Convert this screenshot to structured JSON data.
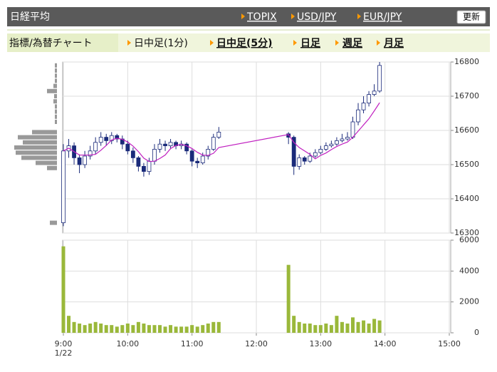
{
  "header": {
    "title": "日経平均",
    "links": [
      "TOPIX",
      "USD/JPY",
      "EUR/JPY"
    ],
    "button": "更新"
  },
  "tabs": {
    "label": "指標/為替チャート",
    "items": [
      "日中足(1分)",
      "日中足(5分)",
      "日足",
      "週足",
      "月足"
    ]
  },
  "chart_data": [
    {
      "type": "candlestick",
      "up_color": "#ffffff",
      "down_color": "#1a2a7a",
      "edge_color": "#1a2a7a",
      "ma_color": "#c020c0",
      "x": [
        0,
        5,
        10,
        15,
        20,
        25,
        30,
        35,
        40,
        45,
        50,
        55,
        60,
        65,
        70,
        75,
        80,
        85,
        90,
        95,
        100,
        105,
        110,
        115,
        120,
        125,
        130,
        135,
        140,
        145,
        210,
        215,
        220,
        225,
        230,
        235,
        240,
        245,
        250,
        255,
        260,
        265,
        270,
        275,
        280,
        285,
        290,
        295
      ],
      "open": [
        16330,
        16540,
        16555,
        16520,
        16500,
        16525,
        16540,
        16565,
        16580,
        16570,
        16585,
        16575,
        16560,
        16540,
        16520,
        16495,
        16480,
        16510,
        16545,
        16560,
        16555,
        16565,
        16555,
        16560,
        16540,
        16510,
        16505,
        16525,
        16545,
        16580,
        16590,
        16580,
        16495,
        16520,
        16510,
        16525,
        16535,
        16545,
        16555,
        16560,
        16570,
        16575,
        16580,
        16625,
        16660,
        16680,
        16705,
        16715
      ],
      "high": [
        16560,
        16575,
        16565,
        16530,
        16540,
        16555,
        16580,
        16595,
        16590,
        16595,
        16590,
        16585,
        16570,
        16550,
        16525,
        16505,
        16520,
        16560,
        16575,
        16570,
        16575,
        16570,
        16570,
        16565,
        16545,
        16520,
        16535,
        16555,
        16590,
        16610,
        16595,
        16585,
        16530,
        16525,
        16535,
        16545,
        16555,
        16565,
        16570,
        16580,
        16590,
        16595,
        16640,
        16680,
        16700,
        16715,
        16735,
        16800
      ],
      "low": [
        16320,
        16520,
        16500,
        16475,
        16490,
        16515,
        16530,
        16555,
        16555,
        16560,
        16565,
        16545,
        16530,
        16505,
        16480,
        16465,
        16470,
        16500,
        16535,
        16540,
        16545,
        16545,
        16545,
        16530,
        16495,
        16490,
        16500,
        16515,
        16540,
        16575,
        16560,
        16470,
        16485,
        16500,
        16505,
        16520,
        16530,
        16540,
        16550,
        16555,
        16565,
        16570,
        16575,
        16615,
        16650,
        16670,
        16700,
        16710
      ],
      "close": [
        16540,
        16555,
        16520,
        16500,
        16525,
        16540,
        16565,
        16580,
        16570,
        16585,
        16575,
        16560,
        16540,
        16520,
        16495,
        16480,
        16510,
        16545,
        16560,
        16555,
        16565,
        16555,
        16560,
        16540,
        16510,
        16505,
        16525,
        16545,
        16580,
        16595,
        16580,
        16495,
        16520,
        16510,
        16525,
        16535,
        16545,
        16555,
        16560,
        16570,
        16575,
        16580,
        16625,
        16660,
        16680,
        16705,
        16715,
        16790
      ],
      "ma": [
        16540,
        16548,
        16538,
        16528,
        16528,
        16528,
        16530,
        16542,
        16556,
        16572,
        16577,
        16574,
        16566,
        16554,
        16538,
        16519,
        16509,
        16510,
        16518,
        16528,
        16547,
        16556,
        16559,
        16555,
        16547,
        16536,
        16528,
        16527,
        16533,
        16550,
        16588,
        16565,
        16550,
        16540,
        16530,
        16517,
        16527,
        16534,
        16544,
        16553,
        16560,
        16566,
        16580,
        16598,
        16616,
        16634,
        16657,
        16681
      ],
      "xlim": [
        0,
        360
      ],
      "ylim": [
        16300,
        16800
      ],
      "yticks": [
        16300,
        16400,
        16500,
        16600,
        16700,
        16800
      ],
      "grid": true,
      "volume_profile": {
        "color": "#999999",
        "prices": [
          16790,
          16775,
          16760,
          16745,
          16730,
          16715,
          16700,
          16685,
          16670,
          16655,
          16640,
          16625,
          16595,
          16580,
          16565,
          16550,
          16535,
          16520,
          16505,
          16490,
          16330
        ],
        "values": [
          3,
          3,
          3,
          3,
          5,
          14,
          4,
          5,
          3,
          3,
          3,
          3,
          35,
          55,
          48,
          60,
          58,
          50,
          30,
          14,
          10
        ]
      }
    },
    {
      "type": "bar",
      "color": "#9ab83a",
      "x": [
        0,
        5,
        10,
        15,
        20,
        25,
        30,
        35,
        40,
        45,
        50,
        55,
        60,
        65,
        70,
        75,
        80,
        85,
        90,
        95,
        100,
        105,
        110,
        115,
        120,
        125,
        130,
        135,
        140,
        145,
        210,
        215,
        220,
        225,
        230,
        235,
        240,
        245,
        250,
        255,
        260,
        265,
        270,
        275,
        280,
        285,
        290,
        295
      ],
      "values": [
        5600,
        1100,
        700,
        600,
        500,
        600,
        700,
        600,
        500,
        500,
        400,
        500,
        600,
        500,
        700,
        600,
        500,
        500,
        500,
        400,
        500,
        400,
        400,
        400,
        500,
        400,
        500,
        600,
        700,
        700,
        4400,
        1100,
        700,
        600,
        600,
        500,
        500,
        600,
        500,
        1100,
        700,
        600,
        1000,
        700,
        800,
        600,
        900,
        800
      ],
      "xlim": [
        0,
        360
      ],
      "ylim": [
        0,
        6000
      ],
      "yticks": [
        0,
        2000,
        4000,
        6000
      ],
      "grid": true,
      "xticks": [
        {
          "value": 0,
          "label": "9:00"
        },
        {
          "value": 60,
          "label": "10:00"
        },
        {
          "value": 120,
          "label": "11:00"
        },
        {
          "value": 180,
          "label": "12:00"
        },
        {
          "value": 240,
          "label": "13:00"
        },
        {
          "value": 300,
          "label": "14:00"
        },
        {
          "value": 360,
          "label": "15:00"
        }
      ],
      "date_label": "1/22"
    }
  ]
}
